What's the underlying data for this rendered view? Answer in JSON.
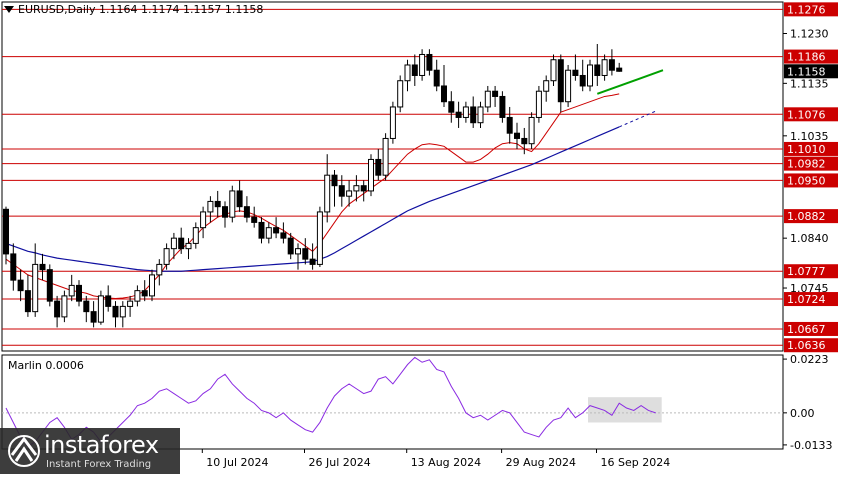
{
  "header": {
    "title": "EURUSD,Daily  1.1164 1.1174 1.1157 1.1158"
  },
  "oscillator": {
    "label": "Marlin 0.0006"
  },
  "logo": {
    "brand": "instaforex",
    "tagline": "Instant Forex Trading"
  },
  "colors": {
    "bull": "#000000",
    "bear": "#000000",
    "ma_fast": "#cc0000",
    "ma_slow": "#1010a0",
    "oscillator": "#8a2be2",
    "level_line": "#cc0000",
    "trend": "#00a000",
    "current_bg": "#000000"
  },
  "chart_data": {
    "type": "candlestick",
    "symbol": "EURUSD",
    "timeframe": "Daily",
    "ylim": [
      1.0625,
      1.129
    ],
    "price_ticks": [
      "1.1230",
      "1.1135",
      "1.1035",
      "1.0840",
      "1.0745"
    ],
    "x_labels": [
      "10 Jul 2024",
      "26 Jul 2024",
      "13 Aug 2024",
      "29 Aug 2024",
      "16 Sep 2024"
    ],
    "levels": [
      "1.1276",
      "1.1186",
      "1.1076",
      "1.1010",
      "1.0982",
      "1.0950",
      "1.0882",
      "1.0777",
      "1.0724",
      "1.0667",
      "1.0636"
    ],
    "current_price": "1.1158",
    "candles": [
      [
        1.0895,
        1.09,
        1.079,
        1.081
      ],
      [
        1.081,
        1.083,
        1.074,
        1.076
      ],
      [
        1.076,
        1.078,
        1.072,
        1.074
      ],
      [
        1.074,
        1.077,
        1.069,
        1.07
      ],
      [
        1.07,
        1.083,
        1.069,
        1.079
      ],
      [
        1.079,
        1.081,
        1.076,
        1.078
      ],
      [
        1.078,
        1.079,
        1.071,
        1.072
      ],
      [
        1.072,
        1.073,
        1.067,
        1.069
      ],
      [
        1.069,
        1.074,
        1.068,
        1.073
      ],
      [
        1.073,
        1.077,
        1.072,
        1.075
      ],
      [
        1.075,
        1.076,
        1.071,
        1.072
      ],
      [
        1.072,
        1.073,
        1.068,
        1.07
      ],
      [
        1.07,
        1.072,
        1.067,
        1.068
      ],
      [
        1.068,
        1.074,
        1.0675,
        1.073
      ],
      [
        1.073,
        1.075,
        1.07,
        1.071
      ],
      [
        1.071,
        1.072,
        1.067,
        1.069
      ],
      [
        1.069,
        1.072,
        1.067,
        1.071
      ],
      [
        1.071,
        1.073,
        1.069,
        1.072
      ],
      [
        1.072,
        1.075,
        1.071,
        1.074
      ],
      [
        1.074,
        1.076,
        1.072,
        1.073
      ],
      [
        1.073,
        1.078,
        1.072,
        1.077
      ],
      [
        1.077,
        1.08,
        1.075,
        1.079
      ],
      [
        1.079,
        1.083,
        1.078,
        1.082
      ],
      [
        1.082,
        1.085,
        1.08,
        1.084
      ],
      [
        1.084,
        1.086,
        1.081,
        1.082
      ],
      [
        1.082,
        1.084,
        1.08,
        1.083
      ],
      [
        1.083,
        1.087,
        1.082,
        1.086
      ],
      [
        1.086,
        1.09,
        1.084,
        1.089
      ],
      [
        1.089,
        1.092,
        1.087,
        1.091
      ],
      [
        1.091,
        1.093,
        1.088,
        1.09
      ],
      [
        1.09,
        1.091,
        1.086,
        1.088
      ],
      [
        1.088,
        1.094,
        1.087,
        1.093
      ],
      [
        1.093,
        1.095,
        1.089,
        1.09
      ],
      [
        1.09,
        1.092,
        1.087,
        1.088
      ],
      [
        1.088,
        1.09,
        1.086,
        1.087
      ],
      [
        1.087,
        1.088,
        1.083,
        1.084
      ],
      [
        1.084,
        1.087,
        1.083,
        1.086
      ],
      [
        1.086,
        1.088,
        1.084,
        1.085
      ],
      [
        1.085,
        1.087,
        1.083,
        1.084
      ],
      [
        1.084,
        1.085,
        1.08,
        1.081
      ],
      [
        1.081,
        1.083,
        1.078,
        1.082
      ],
      [
        1.082,
        1.084,
        1.079,
        1.08
      ],
      [
        1.08,
        1.083,
        1.078,
        1.079
      ],
      [
        1.079,
        1.09,
        1.0785,
        1.089
      ],
      [
        1.089,
        1.1,
        1.087,
        1.096
      ],
      [
        1.096,
        1.097,
        1.09,
        1.094
      ],
      [
        1.094,
        1.096,
        1.09,
        1.092
      ],
      [
        1.092,
        1.095,
        1.09,
        1.093
      ],
      [
        1.093,
        1.096,
        1.091,
        1.094
      ],
      [
        1.094,
        1.095,
        1.091,
        1.093
      ],
      [
        1.093,
        1.1,
        1.092,
        1.099
      ],
      [
        1.099,
        1.101,
        1.095,
        1.096
      ],
      [
        1.096,
        1.104,
        1.095,
        1.103
      ],
      [
        1.103,
        1.11,
        1.102,
        1.109
      ],
      [
        1.109,
        1.115,
        1.108,
        1.114
      ],
      [
        1.114,
        1.118,
        1.112,
        1.117
      ],
      [
        1.117,
        1.119,
        1.113,
        1.115
      ],
      [
        1.115,
        1.12,
        1.114,
        1.119
      ],
      [
        1.119,
        1.12,
        1.115,
        1.116
      ],
      [
        1.116,
        1.118,
        1.112,
        1.113
      ],
      [
        1.113,
        1.117,
        1.109,
        1.11
      ],
      [
        1.11,
        1.112,
        1.106,
        1.108
      ],
      [
        1.108,
        1.11,
        1.105,
        1.107
      ],
      [
        1.107,
        1.11,
        1.106,
        1.109
      ],
      [
        1.109,
        1.111,
        1.105,
        1.106
      ],
      [
        1.106,
        1.11,
        1.105,
        1.109
      ],
      [
        1.109,
        1.113,
        1.108,
        1.112
      ],
      [
        1.112,
        1.113,
        1.109,
        1.111
      ],
      [
        1.111,
        1.112,
        1.106,
        1.107
      ],
      [
        1.107,
        1.109,
        1.102,
        1.104
      ],
      [
        1.104,
        1.106,
        1.101,
        1.103
      ],
      [
        1.103,
        1.105,
        1.1,
        1.102
      ],
      [
        1.102,
        1.108,
        1.101,
        1.107
      ],
      [
        1.107,
        1.113,
        1.106,
        1.112
      ],
      [
        1.112,
        1.115,
        1.11,
        1.114
      ],
      [
        1.114,
        1.119,
        1.113,
        1.118
      ],
      [
        1.118,
        1.119,
        1.108,
        1.11
      ],
      [
        1.11,
        1.117,
        1.109,
        1.116
      ],
      [
        1.116,
        1.119,
        1.114,
        1.115
      ],
      [
        1.115,
        1.118,
        1.112,
        1.113
      ],
      [
        1.113,
        1.118,
        1.112,
        1.117
      ],
      [
        1.117,
        1.121,
        1.113,
        1.115
      ],
      [
        1.115,
        1.119,
        1.114,
        1.118
      ],
      [
        1.118,
        1.12,
        1.115,
        1.116
      ],
      [
        1.1164,
        1.1174,
        1.1157,
        1.1158
      ]
    ],
    "ma_fast": [
      1.08,
      1.079,
      1.078,
      1.077,
      1.0765,
      1.076,
      1.0755,
      1.075,
      1.0745,
      1.074,
      1.0738,
      1.0735,
      1.073,
      1.0728,
      1.0726,
      1.0725,
      1.0726,
      1.0728,
      1.0732,
      1.074,
      1.0755,
      1.077,
      1.079,
      1.0805,
      1.082,
      1.083,
      1.0845,
      1.086,
      1.087,
      1.088,
      1.0885,
      1.089,
      1.0892,
      1.089,
      1.0885,
      1.0878,
      1.087,
      1.0862,
      1.0855,
      1.0845,
      1.0835,
      1.0825,
      1.0815,
      1.083,
      1.085,
      1.087,
      1.089,
      1.0905,
      1.0915,
      1.0925,
      1.0935,
      1.0945,
      1.0955,
      1.097,
      1.0985,
      1.1,
      1.101,
      1.1018,
      1.102,
      1.1018,
      1.1015,
      1.1005,
      1.0995,
      1.0985,
      1.0985,
      1.099,
      1.1,
      1.1012,
      1.102,
      1.1022,
      1.102,
      1.101,
      1.1005,
      1.102,
      1.104,
      1.106,
      1.108,
      1.1085,
      1.109,
      1.1095,
      1.11,
      1.1105,
      1.111,
      1.1112,
      1.1115
    ],
    "ma_slow": [
      1.083,
      1.0825,
      1.082,
      1.0815,
      1.0812,
      1.0808,
      1.0805,
      1.0802,
      1.08,
      1.0798,
      1.0796,
      1.0794,
      1.0792,
      1.079,
      1.0788,
      1.0786,
      1.0784,
      1.0782,
      1.078,
      1.0779,
      1.0778,
      1.0777,
      1.0777,
      1.0777,
      1.0777,
      1.0778,
      1.0779,
      1.078,
      1.0781,
      1.0782,
      1.0783,
      1.0784,
      1.0785,
      1.0786,
      1.0787,
      1.0788,
      1.0789,
      1.079,
      1.0791,
      1.0792,
      1.0793,
      1.0794,
      1.0795,
      1.08,
      1.0805,
      1.0812,
      1.082,
      1.0828,
      1.0836,
      1.0844,
      1.0852,
      1.086,
      1.0868,
      1.0876,
      1.0884,
      1.0892,
      1.0898,
      1.0904,
      1.091,
      1.0915,
      1.092,
      1.0925,
      1.093,
      1.0935,
      1.094,
      1.0945,
      1.095,
      1.0955,
      1.096,
      1.0965,
      1.097,
      1.0975,
      1.098,
      1.0986,
      1.0992,
      1.0998,
      1.1004,
      1.101,
      1.1016,
      1.1022,
      1.1028,
      1.1034,
      1.104,
      1.1046,
      1.1052
    ],
    "ma_slow_projection": [
      1.1058,
      1.1064,
      1.107,
      1.1076,
      1.1082
    ],
    "trend_line": [
      [
        81,
        1.1115
      ],
      [
        90,
        1.116
      ]
    ],
    "oscillator": {
      "name": "Marlin",
      "value": "0.0006",
      "ylim": [
        -0.015,
        0.024
      ],
      "ticks": [
        "0.0223",
        "0.00",
        "-0.0133"
      ],
      "values": [
        0.002,
        -0.004,
        -0.01,
        -0.014,
        -0.012,
        -0.008,
        -0.004,
        -0.002,
        -0.006,
        -0.011,
        -0.009,
        -0.006,
        -0.008,
        -0.012,
        -0.01,
        -0.007,
        -0.004,
        -0.001,
        0.003,
        0.004,
        0.006,
        0.009,
        0.01,
        0.008,
        0.006,
        0.004,
        0.005,
        0.008,
        0.01,
        0.014,
        0.016,
        0.012,
        0.009,
        0.006,
        0.004,
        0.001,
        0.0,
        -0.002,
        0.0,
        -0.003,
        -0.005,
        -0.007,
        -0.008,
        -0.004,
        0.002,
        0.007,
        0.01,
        0.012,
        0.01,
        0.008,
        0.009,
        0.014,
        0.015,
        0.012,
        0.016,
        0.02,
        0.023,
        0.021,
        0.022,
        0.018,
        0.017,
        0.011,
        0.006,
        0.0,
        -0.002,
        -0.001,
        -0.003,
        -0.001,
        0.001,
        0.0,
        -0.004,
        -0.008,
        -0.009,
        -0.01,
        -0.006,
        -0.003,
        -0.002,
        0.002,
        -0.002,
        0.0,
        0.003,
        0.002,
        0.001,
        -0.001,
        0.004,
        0.002,
        0.001,
        0.003,
        0.001,
        0.0
      ],
      "highlight_from": 80
    }
  }
}
